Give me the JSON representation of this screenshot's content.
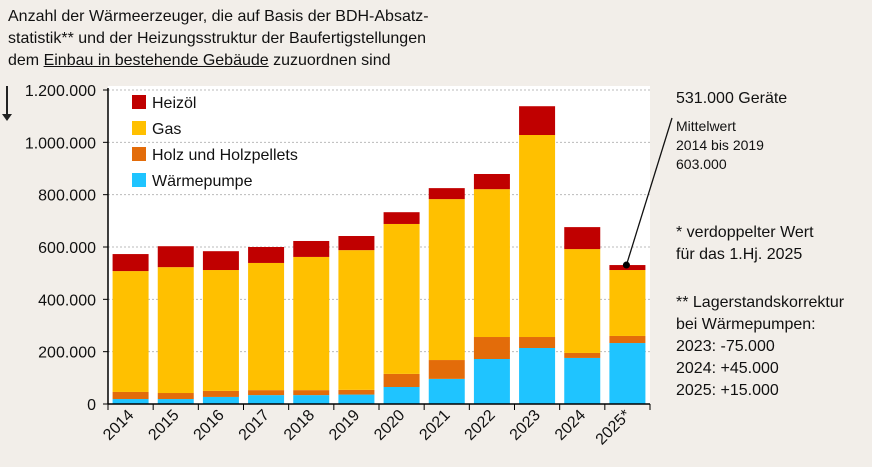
{
  "title": {
    "line1": "Anzahl der Wärmeerzeuger,  die auf Basis der BDH-Absatz-",
    "line2": "statistik** und der Heizungsstruktur der Baufertigstellungen",
    "line3_pre": "dem ",
    "line3_u": "Einbau in bestehende Gebäude",
    "line3_post": " zuzuordnen sind"
  },
  "annotations": {
    "callout": "531.000 Geräte",
    "mittel1": "Mittelwert",
    "mittel2": "2014 bis 2019",
    "mittel3": "603.000",
    "star1": "* verdoppelter  Wert",
    "star2": "für das 1.Hj. 2025",
    "dstar1": "** Lagerstandskorrektur",
    "dstar2": "bei Wärmepumpen:",
    "dstar3": "2023: -75.000",
    "dstar4": "2024: +45.000",
    "dstar5": "2025: +15.000"
  },
  "chart_data": {
    "type": "bar",
    "stacked": true,
    "categories": [
      "2014",
      "2015",
      "2016",
      "2017",
      "2018",
      "2019",
      "2020",
      "2021",
      "2022",
      "2023",
      "2024",
      "2025*"
    ],
    "ylim": [
      0,
      1200000
    ],
    "yticks": [
      0,
      200000,
      400000,
      600000,
      800000,
      1000000,
      1200000
    ],
    "ytick_labels": [
      "0",
      "200.000",
      "400.000",
      "600.000",
      "800.000",
      "1.000.000",
      "1.200.000"
    ],
    "grid": true,
    "legend": "top-left",
    "series": [
      {
        "name": "Wärmepumpe",
        "color": "#1fc4ff",
        "values": [
          19000,
          19000,
          27000,
          34000,
          34000,
          36000,
          65000,
          96000,
          172000,
          214000,
          176000,
          233000
        ]
      },
      {
        "name": "Holz und Holzpellets",
        "color": "#e36c0a",
        "values": [
          27000,
          23000,
          23000,
          19000,
          19000,
          18000,
          50000,
          72000,
          84000,
          42000,
          19000,
          27000
        ]
      },
      {
        "name": "Gas",
        "color": "#ffc000",
        "values": [
          462000,
          481000,
          462000,
          486000,
          509000,
          534000,
          573000,
          615000,
          565000,
          772000,
          397000,
          252000
        ]
      },
      {
        "name": "Heizöl",
        "color": "#c00000",
        "values": [
          65000,
          80000,
          72000,
          61000,
          61000,
          54000,
          45000,
          42000,
          58000,
          110000,
          84000,
          19000
        ]
      }
    ]
  }
}
